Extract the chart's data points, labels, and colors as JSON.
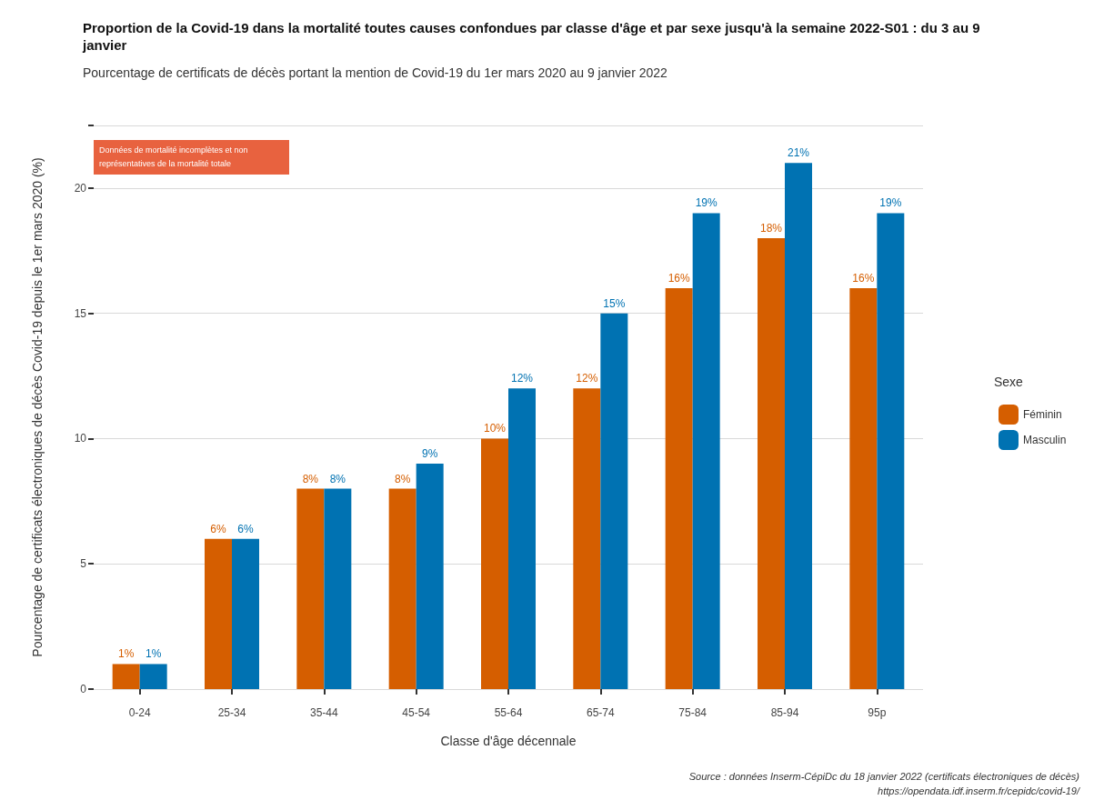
{
  "chart_data": {
    "type": "bar",
    "title": "Proportion de la Covid-19 dans la mortalité toutes causes confondues par classe d'âge et par sexe jusqu'à la semaine 2022-S01 : du 3 au 9 janvier",
    "subtitle": "Pourcentage de certificats de décès portant la mention de Covid-19 du 1er mars 2020 au 9 janvier 2022",
    "xlabel": "Classe d'âge décennale",
    "ylabel": "Pourcentage de certificats électroniques de décès Covid-19 depuis le 1er mars 2020 (%)",
    "legend_title": "Sexe",
    "legend": "right",
    "grid": "y",
    "categories": [
      "0-24",
      "25-34",
      "35-44",
      "45-54",
      "55-64",
      "65-74",
      "75-84",
      "85-94",
      "95p"
    ],
    "series": [
      {
        "name": "Féminin",
        "color": "#d55e00",
        "values": [
          1,
          6,
          8,
          8,
          10,
          12,
          16,
          18,
          16
        ],
        "value_labels": [
          "1%",
          "6%",
          "8%",
          "8%",
          "10%",
          "12%",
          "16%",
          "18%",
          "16%"
        ]
      },
      {
        "name": "Masculin",
        "color": "#0072b2",
        "values": [
          1,
          6,
          8,
          9,
          12,
          15,
          19,
          21,
          19
        ],
        "value_labels": [
          "1%",
          "6%",
          "8%",
          "9%",
          "12%",
          "15%",
          "19%",
          "21%",
          "19%"
        ]
      }
    ],
    "ylim": [
      0,
      22.5
    ],
    "yticks": [
      0,
      5,
      10,
      15,
      20,
      {
        "value": 22.5,
        "label": null
      }
    ],
    "annotations": [
      "Données de mortalité incomplètes et non représentatives de la mortalité totale",
      "Source : données Inserm-CépiDc du 18 janvier 2022 (certificats électroniques de décès)",
      "https://opendata.idf.inserm.fr/cepidc/covid-19/"
    ]
  }
}
